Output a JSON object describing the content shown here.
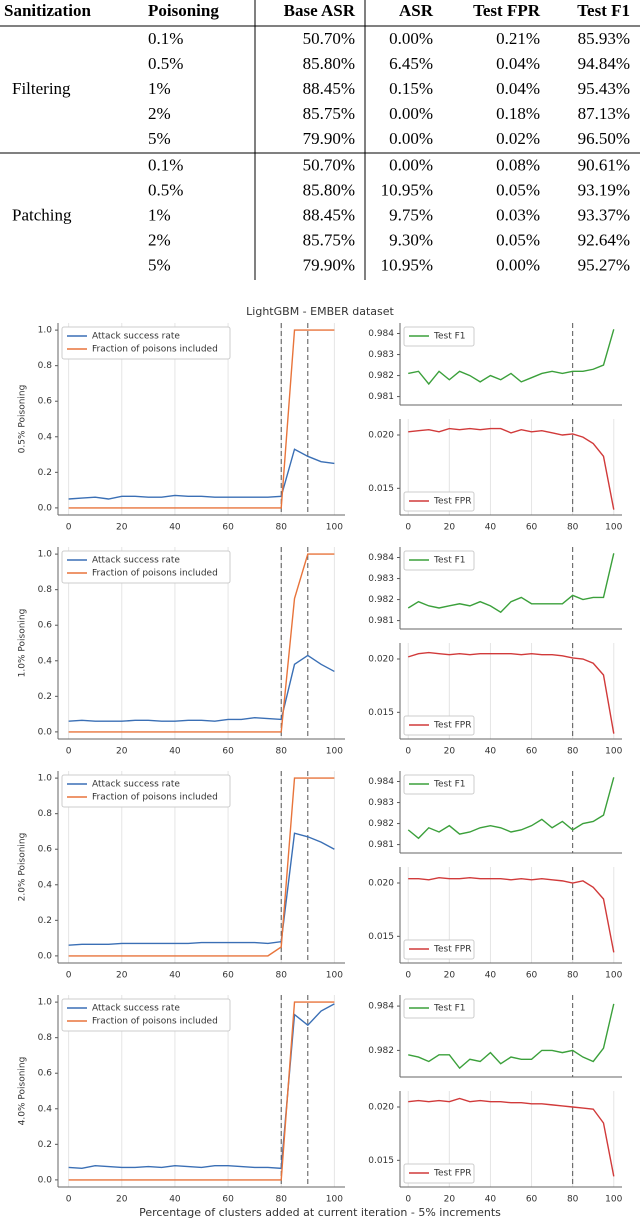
{
  "table": {
    "headers": [
      "Sanitization",
      "Poisoning",
      "Base ASR",
      "ASR",
      "Test FPR",
      "Test F1"
    ],
    "groups": [
      {
        "name": "Filtering",
        "rows": [
          [
            "0.1%",
            "50.70%",
            "0.00%",
            "0.21%",
            "85.93%"
          ],
          [
            "0.5%",
            "85.80%",
            "6.45%",
            "0.04%",
            "94.84%"
          ],
          [
            "1%",
            "88.45%",
            "0.15%",
            "0.04%",
            "95.43%"
          ],
          [
            "2%",
            "85.75%",
            "0.00%",
            "0.18%",
            "87.13%"
          ],
          [
            "5%",
            "79.90%",
            "0.00%",
            "0.02%",
            "96.50%"
          ]
        ]
      },
      {
        "name": "Patching",
        "rows": [
          [
            "0.1%",
            "50.70%",
            "0.00%",
            "0.08%",
            "90.61%"
          ],
          [
            "0.5%",
            "85.80%",
            "10.95%",
            "0.05%",
            "93.19%"
          ],
          [
            "1%",
            "88.45%",
            "9.75%",
            "0.03%",
            "93.37%"
          ],
          [
            "2%",
            "85.75%",
            "9.30%",
            "0.05%",
            "92.64%"
          ],
          [
            "5%",
            "79.90%",
            "10.95%",
            "0.00%",
            "95.27%"
          ]
        ]
      }
    ]
  },
  "figure": {
    "title": "LightGBM - EMBER dataset",
    "xlabel": "Percentage of clusters added at current iteration - 5% increments"
  },
  "chart_data": [
    {
      "type": "line",
      "ylabel": "0.5% Poisoning",
      "x": [
        0,
        5,
        10,
        15,
        20,
        25,
        30,
        35,
        40,
        45,
        50,
        55,
        60,
        65,
        70,
        75,
        80,
        85,
        90,
        95,
        100
      ],
      "xlim": [
        -4,
        104
      ],
      "xticks": [
        0,
        20,
        40,
        60,
        80,
        100
      ],
      "ylim": [
        -0.04,
        1.04
      ],
      "yticks": [
        {
          "value": 0,
          "label": "0.0"
        },
        0.2,
        0.4,
        0.6,
        0.8,
        {
          "value": 1,
          "label": "1.0"
        }
      ],
      "vlines": [
        80,
        90
      ],
      "legend": "upper left",
      "series": [
        {
          "name": "Attack success rate",
          "color": "#3a6fb5",
          "values": [
            0.05,
            0.055,
            0.06,
            0.05,
            0.065,
            0.065,
            0.06,
            0.06,
            0.07,
            0.065,
            0.065,
            0.06,
            0.06,
            0.06,
            0.06,
            0.06,
            0.065,
            0.33,
            0.29,
            0.26,
            0.25
          ]
        },
        {
          "name": "Fraction of poisons included",
          "color": "#e8743b",
          "values": [
            0,
            0,
            0,
            0,
            0,
            0,
            0,
            0,
            0,
            0,
            0,
            0,
            0,
            0,
            0,
            0,
            0,
            1,
            1,
            1,
            1
          ]
        }
      ]
    },
    {
      "type": "line",
      "x": [
        0,
        5,
        10,
        15,
        20,
        25,
        30,
        35,
        40,
        45,
        50,
        55,
        60,
        65,
        70,
        75,
        80,
        85,
        90,
        95,
        100
      ],
      "xlim": [
        -4,
        104
      ],
      "ylim": [
        0.9806,
        0.9845
      ],
      "yticks": [
        0.981,
        0.982,
        0.983,
        0.984
      ],
      "vlines": [
        80
      ],
      "legend": "upper left",
      "series": [
        {
          "name": "Test F1",
          "color": "#3ba03b",
          "values": [
            0.9821,
            0.9822,
            0.9816,
            0.9822,
            0.9818,
            0.9822,
            0.982,
            0.9817,
            0.982,
            0.9818,
            0.9821,
            0.9817,
            0.9819,
            0.9821,
            0.9822,
            0.9821,
            0.9822,
            0.9822,
            0.9823,
            0.9825,
            0.9842
          ]
        }
      ]
    },
    {
      "type": "line",
      "x": [
        0,
        5,
        10,
        15,
        20,
        25,
        30,
        35,
        40,
        45,
        50,
        55,
        60,
        65,
        70,
        75,
        80,
        85,
        90,
        95,
        100
      ],
      "xlim": [
        -4,
        104
      ],
      "xticks": [
        0,
        20,
        40,
        60,
        80,
        100
      ],
      "ylim": [
        0.0125,
        0.0215
      ],
      "yticks": [
        0.015,
        {
          "value": 0.02,
          "label": "0.020"
        }
      ],
      "vlines": [
        80
      ],
      "legend": "lower left",
      "series": [
        {
          "name": "Test FPR",
          "color": "#d13a3a",
          "values": [
            0.0203,
            0.0204,
            0.0205,
            0.0203,
            0.0206,
            0.0205,
            0.0206,
            0.0205,
            0.0206,
            0.0206,
            0.0202,
            0.0205,
            0.0203,
            0.0204,
            0.0202,
            0.02,
            0.0201,
            0.0198,
            0.0192,
            0.018,
            0.013
          ]
        }
      ]
    },
    {
      "type": "line",
      "ylabel": "1.0% Poisoning",
      "x": [
        0,
        5,
        10,
        15,
        20,
        25,
        30,
        35,
        40,
        45,
        50,
        55,
        60,
        65,
        70,
        75,
        80,
        85,
        90,
        95,
        100
      ],
      "xlim": [
        -4,
        104
      ],
      "xticks": [
        0,
        20,
        40,
        60,
        80,
        100
      ],
      "ylim": [
        -0.04,
        1.04
      ],
      "yticks": [
        {
          "value": 0,
          "label": "0.0"
        },
        0.2,
        0.4,
        0.6,
        0.8,
        {
          "value": 1,
          "label": "1.0"
        }
      ],
      "vlines": [
        80,
        90
      ],
      "legend": "upper left",
      "series": [
        {
          "name": "Attack success rate",
          "color": "#3a6fb5",
          "values": [
            0.06,
            0.065,
            0.06,
            0.06,
            0.06,
            0.065,
            0.065,
            0.06,
            0.06,
            0.065,
            0.065,
            0.06,
            0.07,
            0.07,
            0.08,
            0.075,
            0.07,
            0.38,
            0.43,
            0.38,
            0.34
          ]
        },
        {
          "name": "Fraction of poisons included",
          "color": "#e8743b",
          "values": [
            0,
            0,
            0,
            0,
            0,
            0,
            0,
            0,
            0,
            0,
            0,
            0,
            0,
            0,
            0,
            0,
            0,
            0.75,
            1,
            1,
            1
          ]
        }
      ]
    },
    {
      "type": "line",
      "x": [
        0,
        5,
        10,
        15,
        20,
        25,
        30,
        35,
        40,
        45,
        50,
        55,
        60,
        65,
        70,
        75,
        80,
        85,
        90,
        95,
        100
      ],
      "xlim": [
        -4,
        104
      ],
      "ylim": [
        0.9806,
        0.9845
      ],
      "yticks": [
        0.981,
        0.982,
        0.983,
        0.984
      ],
      "vlines": [
        80
      ],
      "legend": "upper left",
      "series": [
        {
          "name": "Test F1",
          "color": "#3ba03b",
          "values": [
            0.9816,
            0.9819,
            0.9817,
            0.9816,
            0.9817,
            0.9818,
            0.9817,
            0.9819,
            0.9817,
            0.9814,
            0.9819,
            0.9821,
            0.9818,
            0.9818,
            0.9818,
            0.9818,
            0.9822,
            0.982,
            0.9821,
            0.9821,
            0.9842
          ]
        }
      ]
    },
    {
      "type": "line",
      "x": [
        0,
        5,
        10,
        15,
        20,
        25,
        30,
        35,
        40,
        45,
        50,
        55,
        60,
        65,
        70,
        75,
        80,
        85,
        90,
        95,
        100
      ],
      "xlim": [
        -4,
        104
      ],
      "xticks": [
        0,
        20,
        40,
        60,
        80,
        100
      ],
      "ylim": [
        0.0125,
        0.0215
      ],
      "yticks": [
        0.015,
        {
          "value": 0.02,
          "label": "0.020"
        }
      ],
      "vlines": [
        80
      ],
      "legend": "lower left",
      "series": [
        {
          "name": "Test FPR",
          "color": "#d13a3a",
          "values": [
            0.0202,
            0.0205,
            0.0206,
            0.0205,
            0.0204,
            0.0205,
            0.0204,
            0.0205,
            0.0205,
            0.0205,
            0.0205,
            0.0204,
            0.0205,
            0.0204,
            0.0204,
            0.0203,
            0.0201,
            0.02,
            0.0196,
            0.0185,
            0.013
          ]
        }
      ]
    },
    {
      "type": "line",
      "ylabel": "2.0% Poisoning",
      "x": [
        0,
        5,
        10,
        15,
        20,
        25,
        30,
        35,
        40,
        45,
        50,
        55,
        60,
        65,
        70,
        75,
        80,
        85,
        90,
        95,
        100
      ],
      "xlim": [
        -4,
        104
      ],
      "xticks": [
        0,
        20,
        40,
        60,
        80,
        100
      ],
      "ylim": [
        -0.04,
        1.04
      ],
      "yticks": [
        {
          "value": 0,
          "label": "0.0"
        },
        0.2,
        0.4,
        0.6,
        0.8,
        {
          "value": 1,
          "label": "1.0"
        }
      ],
      "vlines": [
        80,
        90
      ],
      "legend": "upper left",
      "series": [
        {
          "name": "Attack success rate",
          "color": "#3a6fb5",
          "values": [
            0.06,
            0.065,
            0.065,
            0.065,
            0.07,
            0.07,
            0.07,
            0.07,
            0.07,
            0.07,
            0.075,
            0.075,
            0.075,
            0.075,
            0.075,
            0.07,
            0.08,
            0.69,
            0.67,
            0.64,
            0.6
          ]
        },
        {
          "name": "Fraction of poisons included",
          "color": "#e8743b",
          "values": [
            0,
            0,
            0,
            0,
            0,
            0,
            0,
            0,
            0,
            0,
            0,
            0,
            0,
            0,
            0,
            0,
            0.05,
            1,
            1,
            1,
            1
          ]
        }
      ]
    },
    {
      "type": "line",
      "x": [
        0,
        5,
        10,
        15,
        20,
        25,
        30,
        35,
        40,
        45,
        50,
        55,
        60,
        65,
        70,
        75,
        80,
        85,
        90,
        95,
        100
      ],
      "xlim": [
        -4,
        104
      ],
      "ylim": [
        0.9806,
        0.9845
      ],
      "yticks": [
        0.981,
        0.982,
        0.983,
        0.984
      ],
      "vlines": [
        80
      ],
      "legend": "upper left",
      "series": [
        {
          "name": "Test F1",
          "color": "#3ba03b",
          "values": [
            0.9817,
            0.9813,
            0.9818,
            0.9816,
            0.9819,
            0.9815,
            0.9816,
            0.9818,
            0.9819,
            0.9818,
            0.9816,
            0.9817,
            0.9819,
            0.9822,
            0.9818,
            0.9821,
            0.9817,
            0.982,
            0.9821,
            0.9824,
            0.9842
          ]
        }
      ]
    },
    {
      "type": "line",
      "x": [
        0,
        5,
        10,
        15,
        20,
        25,
        30,
        35,
        40,
        45,
        50,
        55,
        60,
        65,
        70,
        75,
        80,
        85,
        90,
        95,
        100
      ],
      "xlim": [
        -4,
        104
      ],
      "xticks": [
        0,
        20,
        40,
        60,
        80,
        100
      ],
      "ylim": [
        0.0125,
        0.0215
      ],
      "yticks": [
        0.015,
        {
          "value": 0.02,
          "label": "0.020"
        }
      ],
      "vlines": [
        80
      ],
      "legend": "lower left",
      "series": [
        {
          "name": "Test FPR",
          "color": "#d13a3a",
          "values": [
            0.0204,
            0.0204,
            0.0203,
            0.0205,
            0.0204,
            0.0204,
            0.0205,
            0.0204,
            0.0204,
            0.0204,
            0.0203,
            0.0204,
            0.0203,
            0.0204,
            0.0203,
            0.0202,
            0.02,
            0.0202,
            0.0196,
            0.0185,
            0.0135
          ]
        }
      ]
    },
    {
      "type": "line",
      "ylabel": "4.0% Poisoning",
      "x": [
        0,
        5,
        10,
        15,
        20,
        25,
        30,
        35,
        40,
        45,
        50,
        55,
        60,
        65,
        70,
        75,
        80,
        85,
        90,
        95,
        100
      ],
      "xlim": [
        -4,
        104
      ],
      "xticks": [
        0,
        20,
        40,
        60,
        80,
        100
      ],
      "ylim": [
        -0.04,
        1.04
      ],
      "yticks": [
        {
          "value": 0,
          "label": "0.0"
        },
        0.2,
        0.4,
        0.6,
        0.8,
        {
          "value": 1,
          "label": "1.0"
        }
      ],
      "vlines": [
        80,
        90
      ],
      "legend": "upper left",
      "series": [
        {
          "name": "Attack success rate",
          "color": "#3a6fb5",
          "values": [
            0.07,
            0.065,
            0.08,
            0.075,
            0.07,
            0.07,
            0.075,
            0.07,
            0.08,
            0.075,
            0.07,
            0.08,
            0.08,
            0.075,
            0.07,
            0.07,
            0.065,
            0.93,
            0.87,
            0.95,
            0.99
          ]
        },
        {
          "name": "Fraction of poisons included",
          "color": "#e8743b",
          "values": [
            0,
            0,
            0,
            0,
            0,
            0,
            0,
            0,
            0,
            0,
            0,
            0,
            0,
            0,
            0,
            0,
            0,
            1,
            1,
            1,
            1
          ]
        }
      ]
    },
    {
      "type": "line",
      "x": [
        0,
        5,
        10,
        15,
        20,
        25,
        30,
        35,
        40,
        45,
        50,
        55,
        60,
        65,
        70,
        75,
        80,
        85,
        90,
        95,
        100
      ],
      "xlim": [
        -4,
        104
      ],
      "ylim": [
        0.9808,
        0.9845
      ],
      "yticks": [
        0.982,
        0.984
      ],
      "vlines": [
        80
      ],
      "legend": "upper left",
      "series": [
        {
          "name": "Test F1",
          "color": "#3ba03b",
          "values": [
            0.9818,
            0.9817,
            0.9815,
            0.9818,
            0.9818,
            0.9812,
            0.9816,
            0.9815,
            0.9819,
            0.9814,
            0.9817,
            0.9816,
            0.9816,
            0.982,
            0.982,
            0.9819,
            0.982,
            0.9817,
            0.9815,
            0.9821,
            0.9841
          ]
        }
      ]
    },
    {
      "type": "line",
      "x": [
        0,
        5,
        10,
        15,
        20,
        25,
        30,
        35,
        40,
        45,
        50,
        55,
        60,
        65,
        70,
        75,
        80,
        85,
        90,
        95,
        100
      ],
      "xlim": [
        -4,
        104
      ],
      "xticks": [
        0,
        20,
        40,
        60,
        80,
        100
      ],
      "ylim": [
        0.0125,
        0.0215
      ],
      "yticks": [
        0.015,
        {
          "value": 0.02,
          "label": "0.020"
        }
      ],
      "vlines": [
        80
      ],
      "legend": "lower left",
      "series": [
        {
          "name": "Test FPR",
          "color": "#d13a3a",
          "values": [
            0.0205,
            0.0206,
            0.0205,
            0.0206,
            0.0205,
            0.0208,
            0.0205,
            0.0206,
            0.0205,
            0.0205,
            0.0204,
            0.0204,
            0.0203,
            0.0203,
            0.0202,
            0.0201,
            0.02,
            0.0199,
            0.0198,
            0.0185,
            0.0135
          ]
        }
      ]
    }
  ]
}
